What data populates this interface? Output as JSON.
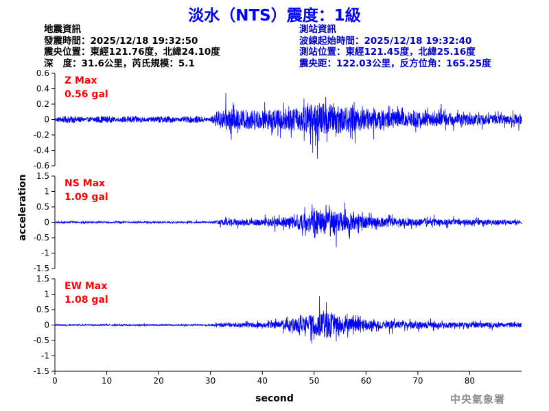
{
  "header": {
    "title": "淡水（NTS）震度：1級"
  },
  "earthquake_info": {
    "heading": "地震資訊",
    "time": "發震時間：2025/12/18 19:32:50",
    "location": "震央位置：東經121.76度，北緯24.10度",
    "depth": "深   度：31.6公里，芮氏規模：5.1"
  },
  "station_info": {
    "heading": "測站資訊",
    "start_time": "波線起始時間：2025/12/18 19:32:40",
    "location": "測站位置：東經121.45度，北緯25.16度",
    "distance": "震央距：122.03公里，反方位角：165.25度"
  },
  "footer": {
    "agency": "中央氣象署"
  },
  "chart_data": {
    "type": "line",
    "xlabel": "second",
    "ylabel": "acceleration",
    "xlim": [
      0,
      90
    ],
    "xticks": [
      "0",
      "10",
      "20",
      "30",
      "40",
      "50",
      "60",
      "70",
      "80"
    ],
    "line_color": "#0000ff",
    "panels": [
      {
        "name": "Z",
        "peak_label": "Z Max",
        "peak_value": "0.56 gal",
        "ylim": [
          -0.6,
          0.6
        ],
        "yticks": [
          "0.6",
          "0.4",
          "0.2",
          "0",
          "-0.2",
          "-0.4",
          "-0.6"
        ],
        "envelope": [
          {
            "t": 0,
            "a": 0.05
          },
          {
            "t": 30,
            "a": 0.05
          },
          {
            "t": 33,
            "a": 0.35
          },
          {
            "t": 40,
            "a": 0.3
          },
          {
            "t": 47,
            "a": 0.38
          },
          {
            "t": 51,
            "a": 0.56
          },
          {
            "t": 55,
            "a": 0.45
          },
          {
            "t": 62,
            "a": 0.32
          },
          {
            "t": 70,
            "a": 0.25
          },
          {
            "t": 80,
            "a": 0.17
          },
          {
            "t": 90,
            "a": 0.15
          }
        ]
      },
      {
        "name": "NS",
        "peak_label": "NS Max",
        "peak_value": "1.09 gal",
        "ylim": [
          -1.5,
          1.5
        ],
        "yticks": [
          "1.5",
          "1",
          "0.5",
          "0",
          "-0.5",
          "-1",
          "-1.5"
        ],
        "envelope": [
          {
            "t": 0,
            "a": 0.06
          },
          {
            "t": 30,
            "a": 0.07
          },
          {
            "t": 33,
            "a": 0.25
          },
          {
            "t": 40,
            "a": 0.25
          },
          {
            "t": 46,
            "a": 0.5
          },
          {
            "t": 50,
            "a": 0.95
          },
          {
            "t": 53,
            "a": 1.09
          },
          {
            "t": 56,
            "a": 0.7
          },
          {
            "t": 62,
            "a": 0.4
          },
          {
            "t": 70,
            "a": 0.28
          },
          {
            "t": 80,
            "a": 0.22
          },
          {
            "t": 90,
            "a": 0.18
          }
        ]
      },
      {
        "name": "EW",
        "peak_label": "EW Max",
        "peak_value": "1.08 gal",
        "ylim": [
          -1.5,
          1.5
        ],
        "yticks": [
          "1.5",
          "1",
          "0.5",
          "0",
          "-0.5",
          "-1",
          "-1.5"
        ],
        "envelope": [
          {
            "t": 0,
            "a": 0.05
          },
          {
            "t": 30,
            "a": 0.06
          },
          {
            "t": 33,
            "a": 0.18
          },
          {
            "t": 40,
            "a": 0.2
          },
          {
            "t": 46,
            "a": 0.5
          },
          {
            "t": 50,
            "a": 0.9
          },
          {
            "t": 53,
            "a": 1.08
          },
          {
            "t": 56,
            "a": 0.6
          },
          {
            "t": 62,
            "a": 0.35
          },
          {
            "t": 70,
            "a": 0.25
          },
          {
            "t": 80,
            "a": 0.2
          },
          {
            "t": 90,
            "a": 0.18
          }
        ]
      }
    ]
  }
}
